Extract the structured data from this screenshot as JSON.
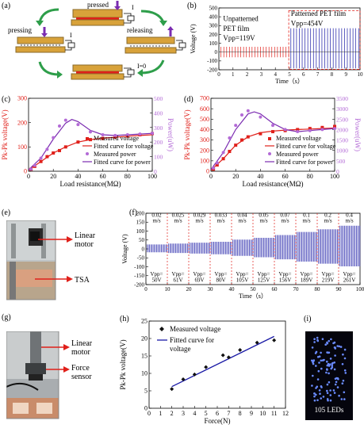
{
  "panels": {
    "a": {
      "label": "(a)",
      "pressed": "pressed",
      "pressing": "pressing",
      "releasing": "releasing",
      "i1": "I",
      "i2": "I",
      "i0": "I=0"
    },
    "b": {
      "label": "(b)"
    },
    "c": {
      "label": "(c)"
    },
    "d": {
      "label": "(d)"
    },
    "e": {
      "label": "(e)",
      "motor": "Linear motor",
      "tsa": "TSA"
    },
    "f": {
      "label": "(f)"
    },
    "g": {
      "label": "(g)",
      "motor": "Linear motor",
      "force": "Force sensor"
    },
    "h": {
      "label": "(h)"
    },
    "i": {
      "label": "(i)",
      "leds": "105 LEDs"
    }
  },
  "colors": {
    "red": "#e0201a",
    "blue": "#1a1aa6",
    "purple": "#7a2bb0",
    "violet": "#b36ad6",
    "green": "#2e9e4a",
    "gold": "#d8a23a"
  },
  "chart_data": [
    {
      "id": "b",
      "type": "line",
      "ylabel": "Voltage (V)",
      "xlabel": "Time（s）",
      "ylim": [
        -200,
        500
      ],
      "xlim": [
        0,
        10
      ],
      "yticks": [
        -200,
        -100,
        0,
        100,
        200,
        300,
        400,
        500
      ],
      "xticks": [
        0,
        1,
        2,
        3,
        4,
        5,
        6,
        7,
        8,
        9,
        10
      ],
      "annotations": [
        "Unpatterned",
        "PET film",
        "Vpp=119V",
        "Patterned PET film",
        "Vpp=454V"
      ],
      "series": [
        {
          "name": "unpatterned",
          "x_range": [
            0,
            5
          ],
          "peak_max": 60,
          "peak_min": -59
        },
        {
          "name": "patterned",
          "x_range": [
            5,
            10
          ],
          "peak_max": 270,
          "peak_min": -184
        }
      ]
    },
    {
      "id": "c",
      "type": "scatter",
      "xlabel": "Load resistance(MΩ)",
      "ylabel": "Pk-Pk voltage(V)",
      "y2label": "Power(uW)",
      "xlim": [
        0,
        100
      ],
      "ylim": [
        0,
        300
      ],
      "y2lim": [
        0,
        500
      ],
      "xticks": [
        0,
        20,
        40,
        60,
        80,
        100
      ],
      "yticks": [
        0,
        100,
        200,
        300
      ],
      "y2ticks": [
        0,
        100,
        200,
        300,
        400,
        500
      ],
      "legend": [
        "Measured voltage",
        "Fitted curve for voltage",
        "Measured power",
        "Fitted curve for power"
      ],
      "series": [
        {
          "name": "Measured voltage",
          "x": [
            2,
            5,
            10,
            15,
            20,
            25,
            30,
            40,
            50,
            60,
            70,
            80,
            90,
            100
          ],
          "values": [
            8,
            20,
            40,
            60,
            75,
            85,
            100,
            120,
            130,
            135,
            140,
            145,
            150,
            155
          ]
        },
        {
          "name": "Fitted curve for voltage",
          "x": [
            0,
            10,
            20,
            30,
            40,
            50,
            60,
            70,
            80,
            90,
            100
          ],
          "values": [
            5,
            40,
            75,
            100,
            120,
            130,
            136,
            140,
            144,
            147,
            150
          ]
        },
        {
          "name": "Measured power",
          "x": [
            2,
            5,
            10,
            15,
            20,
            25,
            30,
            40,
            50,
            60,
            70,
            80,
            90,
            100
          ],
          "values": [
            15,
            40,
            90,
            150,
            230,
            310,
            350,
            320,
            270,
            250,
            245,
            250,
            255,
            260
          ]
        },
        {
          "name": "Fitted curve for power",
          "x": [
            0,
            10,
            20,
            30,
            35,
            40,
            50,
            60,
            70,
            80,
            90,
            100
          ],
          "values": [
            10,
            90,
            220,
            330,
            355,
            340,
            280,
            250,
            245,
            250,
            255,
            260
          ]
        }
      ]
    },
    {
      "id": "d",
      "type": "scatter",
      "xlabel": "Load resistance(MΩ)",
      "ylabel": "Pk-Pk voltage(V)",
      "y2label": "Power(uW)",
      "xlim": [
        0,
        100
      ],
      "ylim": [
        0,
        700
      ],
      "y2lim": [
        0,
        3500
      ],
      "xticks": [
        0,
        20,
        40,
        60,
        80,
        100
      ],
      "yticks": [
        0,
        100,
        200,
        300,
        400,
        500,
        600,
        700
      ],
      "y2ticks": [
        0,
        500,
        1000,
        1500,
        2000,
        2500,
        3000,
        3500
      ],
      "legend": [
        "Measured voltage",
        "Fitted curve for voltage",
        "Measured power",
        "Fitted curve for power"
      ],
      "series": [
        {
          "name": "Measured voltage",
          "x": [
            2,
            5,
            10,
            15,
            20,
            25,
            30,
            40,
            50,
            60,
            70,
            80,
            90,
            100
          ],
          "values": [
            20,
            60,
            120,
            190,
            250,
            300,
            330,
            360,
            380,
            390,
            400,
            410,
            420,
            430
          ]
        },
        {
          "name": "Fitted curve for voltage",
          "x": [
            0,
            10,
            20,
            30,
            40,
            50,
            60,
            70,
            80,
            90,
            100
          ],
          "values": [
            10,
            120,
            250,
            330,
            370,
            385,
            395,
            400,
            405,
            410,
            415
          ]
        },
        {
          "name": "Measured power",
          "x": [
            2,
            5,
            10,
            15,
            20,
            25,
            30,
            40,
            50,
            60,
            70,
            80,
            90,
            100
          ],
          "values": [
            150,
            400,
            900,
            1600,
            2200,
            2700,
            2900,
            2600,
            2200,
            2000,
            1900,
            1950,
            2000,
            2050
          ]
        },
        {
          "name": "Fitted curve for power",
          "x": [
            0,
            10,
            20,
            30,
            35,
            40,
            50,
            60,
            70,
            80,
            90,
            100
          ],
          "values": [
            80,
            900,
            2000,
            2750,
            2850,
            2750,
            2300,
            2000,
            1900,
            1950,
            2000,
            2050
          ]
        }
      ]
    },
    {
      "id": "f",
      "type": "line",
      "ylabel": "Voltage (V)",
      "xlabel": "Time（s）",
      "ylim": [
        -200,
        200
      ],
      "xlim": [
        0,
        100
      ],
      "yticks": [
        -200,
        -150,
        -100,
        -50,
        0,
        50,
        100,
        150,
        200
      ],
      "xticks": [
        0,
        10,
        20,
        30,
        40,
        50,
        60,
        70,
        80,
        90,
        100
      ],
      "segments": [
        {
          "speed": "0.02",
          "unit": "m/s",
          "vpp": "Vpp=",
          "v": "50V",
          "amp": 25
        },
        {
          "speed": "0.025",
          "unit": "m/s",
          "vpp": "Vpp=",
          "v": "61V",
          "amp": 30
        },
        {
          "speed": "0.029",
          "unit": "m/s",
          "vpp": "Vpp=",
          "v": "69V",
          "amp": 35
        },
        {
          "speed": "0.033",
          "unit": "m/s",
          "vpp": "Vpp=",
          "v": "80V",
          "amp": 40
        },
        {
          "speed": "0.04",
          "unit": "m/s",
          "vpp": "Vpp=",
          "v": "105V",
          "amp": 52
        },
        {
          "speed": "0.05",
          "unit": "m/s",
          "vpp": "Vpp=",
          "v": "125V",
          "amp": 62
        },
        {
          "speed": "0.07",
          "unit": "m/s",
          "vpp": "Vpp=",
          "v": "156V",
          "amp": 78
        },
        {
          "speed": "0.1",
          "unit": "m/s",
          "vpp": "Vpp=",
          "v": "189V",
          "amp": 95
        },
        {
          "speed": "0.2",
          "unit": "m/s",
          "vpp": "Vpp=",
          "v": "219V",
          "amp": 110
        },
        {
          "speed": "0.4",
          "unit": "m/s",
          "vpp": "Vpp=",
          "v": "261V",
          "amp": 130
        }
      ]
    },
    {
      "id": "h",
      "type": "scatter",
      "xlabel": "Force(N)",
      "ylabel": "Pk-Pk voltage(V)",
      "xlim": [
        0,
        12
      ],
      "ylim": [
        0,
        25
      ],
      "xticks": [
        0,
        1,
        2,
        3,
        4,
        5,
        6,
        7,
        8,
        9,
        10,
        11,
        12
      ],
      "yticks": [
        0,
        5,
        10,
        15,
        20,
        25
      ],
      "legend": [
        "Measured voltage",
        "Fitted curve for voltage"
      ],
      "series": [
        {
          "name": "Measured voltage",
          "x": [
            2,
            3,
            4,
            5,
            6.5,
            7,
            8,
            9.5,
            11
          ],
          "values": [
            5.5,
            8.3,
            9.7,
            11.8,
            15.2,
            14.6,
            16.7,
            18.8,
            19.5
          ]
        },
        {
          "name": "Fitted curve for voltage",
          "x": [
            2,
            11
          ],
          "values": [
            6.2,
            20.6
          ]
        }
      ]
    }
  ]
}
